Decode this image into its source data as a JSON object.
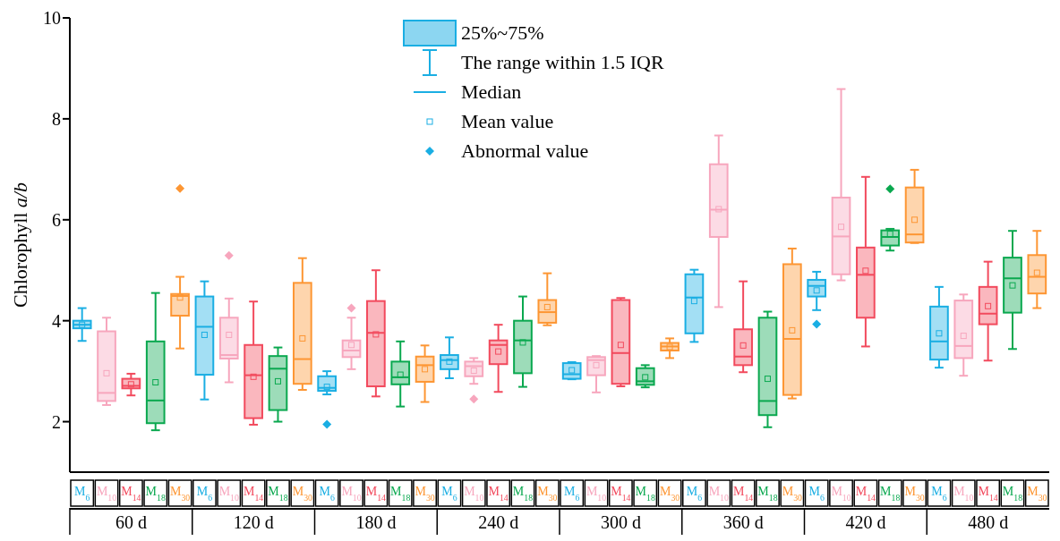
{
  "chart_data": {
    "type": "box",
    "ylabel": "Chlorophyll a/b",
    "ylim": [
      1,
      10
    ],
    "yticks": [
      2,
      4,
      6,
      8,
      10
    ],
    "categories": [
      "60 d",
      "120 d",
      "180 d",
      "240 d",
      "300 d",
      "360 d",
      "420 d",
      "480 d"
    ],
    "annotations": [
      "25%~75%",
      "The range within 1.5 IQR",
      "Median",
      "Mean value",
      "Abnormal value"
    ],
    "series": [
      {
        "name": "M$_{6}$",
        "color": "#1aaee3",
        "boxes": [
          {
            "low": 3.6,
            "q1": 3.85,
            "median": 3.92,
            "q3": 4.0,
            "high": 4.25,
            "mean": 3.92
          },
          {
            "low": 2.44,
            "q1": 2.93,
            "median": 3.88,
            "q3": 4.48,
            "high": 4.78,
            "mean": 3.72
          },
          {
            "low": 2.54,
            "q1": 2.61,
            "median": 2.67,
            "q3": 2.9,
            "high": 3.0,
            "mean": 2.69,
            "outliers": [
              1.95
            ]
          },
          {
            "low": 2.86,
            "q1": 3.04,
            "median": 3.22,
            "q3": 3.32,
            "high": 3.67,
            "mean": 3.19
          },
          {
            "low": 2.84,
            "q1": 2.85,
            "median": 2.94,
            "q3": 3.16,
            "high": 3.18,
            "mean": 3.02
          },
          {
            "low": 3.58,
            "q1": 3.75,
            "median": 4.46,
            "q3": 4.92,
            "high": 5.01,
            "mean": 4.39
          },
          {
            "low": 4.21,
            "q1": 4.48,
            "median": 4.69,
            "q3": 4.81,
            "high": 4.97,
            "mean": 4.6,
            "outliers": [
              3.93
            ]
          },
          {
            "low": 3.07,
            "q1": 3.23,
            "median": 3.59,
            "q3": 4.28,
            "high": 4.67,
            "mean": 3.75
          }
        ]
      },
      {
        "name": "M$_{10}$",
        "color": "#f7a6bd",
        "boxes": [
          {
            "low": 2.33,
            "q1": 2.41,
            "median": 2.57,
            "q3": 3.79,
            "high": 4.06,
            "mean": 2.96
          },
          {
            "low": 2.78,
            "q1": 3.25,
            "median": 3.32,
            "q3": 4.06,
            "high": 4.44,
            "mean": 3.72,
            "outliers": [
              5.29
            ]
          },
          {
            "low": 3.04,
            "q1": 3.28,
            "median": 3.41,
            "q3": 3.61,
            "high": 4.06,
            "mean": 3.52,
            "outliers": [
              4.25
            ]
          },
          {
            "low": 2.75,
            "q1": 2.9,
            "median": 3.1,
            "q3": 3.19,
            "high": 3.26,
            "mean": 3.01,
            "outliers": [
              2.45
            ]
          },
          {
            "low": 2.58,
            "q1": 2.92,
            "median": 3.22,
            "q3": 3.28,
            "high": 3.3,
            "mean": 3.12
          },
          {
            "low": 4.27,
            "q1": 5.66,
            "median": 6.2,
            "q3": 7.1,
            "high": 7.67,
            "mean": 6.21
          },
          {
            "low": 4.8,
            "q1": 4.92,
            "median": 5.67,
            "q3": 6.44,
            "high": 8.59,
            "mean": 5.86
          },
          {
            "low": 2.91,
            "q1": 3.26,
            "median": 3.5,
            "q3": 4.4,
            "high": 4.52,
            "mean": 3.7
          }
        ]
      },
      {
        "name": "M$_{14}$",
        "color": "#f24a5d",
        "boxes": [
          {
            "low": 2.52,
            "q1": 2.66,
            "median": 2.71,
            "q3": 2.85,
            "high": 2.95,
            "mean": 2.74
          },
          {
            "low": 1.94,
            "q1": 2.07,
            "median": 2.92,
            "q3": 3.52,
            "high": 4.38,
            "mean": 2.89
          },
          {
            "low": 2.5,
            "q1": 2.7,
            "median": 3.76,
            "q3": 4.39,
            "high": 5.0,
            "mean": 3.73
          },
          {
            "low": 2.59,
            "q1": 3.14,
            "median": 3.52,
            "q3": 3.61,
            "high": 3.92,
            "mean": 3.39
          },
          {
            "low": 2.7,
            "q1": 2.75,
            "median": 3.36,
            "q3": 4.41,
            "high": 4.45,
            "mean": 3.52
          },
          {
            "low": 2.98,
            "q1": 3.12,
            "median": 3.29,
            "q3": 3.83,
            "high": 4.78,
            "mean": 3.51
          },
          {
            "low": 3.49,
            "q1": 4.06,
            "median": 4.91,
            "q3": 5.45,
            "high": 6.85,
            "mean": 4.99
          },
          {
            "low": 3.21,
            "q1": 3.93,
            "median": 4.14,
            "q3": 4.67,
            "high": 5.17,
            "mean": 4.29
          }
        ]
      },
      {
        "name": "M$_{18}$",
        "color": "#0aa84f",
        "boxes": [
          {
            "low": 1.83,
            "q1": 1.97,
            "median": 2.42,
            "q3": 3.59,
            "high": 4.55,
            "mean": 2.78
          },
          {
            "low": 2.0,
            "q1": 2.23,
            "median": 3.05,
            "q3": 3.3,
            "high": 3.47,
            "mean": 2.8
          },
          {
            "low": 2.3,
            "q1": 2.74,
            "median": 2.88,
            "q3": 3.19,
            "high": 3.59,
            "mean": 2.93
          },
          {
            "low": 2.69,
            "q1": 2.96,
            "median": 3.61,
            "q3": 4.0,
            "high": 4.48,
            "mean": 3.57
          },
          {
            "low": 2.68,
            "q1": 2.73,
            "median": 2.8,
            "q3": 3.06,
            "high": 3.12,
            "mean": 2.88
          },
          {
            "low": 1.89,
            "q1": 2.13,
            "median": 2.41,
            "q3": 4.06,
            "high": 4.18,
            "mean": 2.85
          },
          {
            "low": 5.39,
            "q1": 5.49,
            "median": 5.66,
            "q3": 5.79,
            "high": 5.82,
            "mean": 5.72,
            "outliers": [
              6.61
            ]
          },
          {
            "low": 3.44,
            "q1": 4.16,
            "median": 4.84,
            "q3": 5.25,
            "high": 5.78,
            "mean": 4.7
          }
        ]
      },
      {
        "name": "M$_{30}$",
        "color": "#fd9633",
        "boxes": [
          {
            "low": 3.45,
            "q1": 4.1,
            "median": 4.49,
            "q3": 4.53,
            "high": 4.87,
            "mean": 4.46,
            "outliers": [
              6.62
            ]
          },
          {
            "low": 2.63,
            "q1": 2.75,
            "median": 3.24,
            "q3": 4.75,
            "high": 5.24,
            "mean": 3.65
          },
          {
            "low": 2.39,
            "q1": 2.79,
            "median": 3.12,
            "q3": 3.29,
            "high": 3.51,
            "mean": 3.04
          },
          {
            "low": 3.91,
            "q1": 3.96,
            "median": 4.17,
            "q3": 4.41,
            "high": 4.94,
            "mean": 4.27
          },
          {
            "low": 3.26,
            "q1": 3.41,
            "median": 3.49,
            "q3": 3.56,
            "high": 3.65,
            "mean": 3.48
          },
          {
            "low": 2.46,
            "q1": 2.53,
            "median": 3.64,
            "q3": 5.12,
            "high": 5.43,
            "mean": 3.81
          },
          {
            "low": 5.54,
            "q1": 5.55,
            "median": 5.71,
            "q3": 6.64,
            "high": 6.99,
            "mean": 6.0
          },
          {
            "low": 4.25,
            "q1": 4.54,
            "median": 4.87,
            "q3": 5.3,
            "high": 5.78,
            "mean": 4.95
          }
        ]
      }
    ]
  }
}
